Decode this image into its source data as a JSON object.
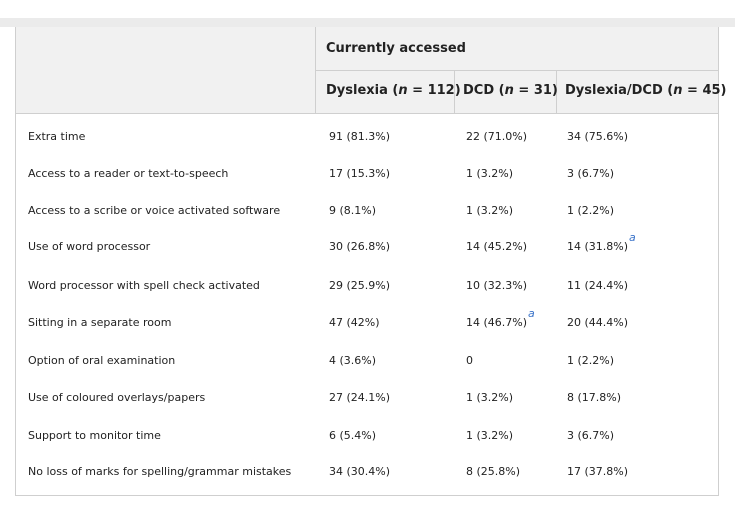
{
  "header": {
    "group_label": "Currently accessed",
    "columns": [
      {
        "name": "Dyslexia",
        "n_label": "n",
        "n_value": "112"
      },
      {
        "name": "DCD",
        "n_label": "n",
        "n_value": "31"
      },
      {
        "name": "Dyslexia/DCD",
        "n_label": "n",
        "n_value": "45"
      }
    ]
  },
  "footnote_marker": "a",
  "rows": [
    {
      "label": "Extra time",
      "dyslexia": "91 (81.3%)",
      "dcd": "22 (71.0%)",
      "both": "34 (75.6%)"
    },
    {
      "label": "Access to a reader or text-to-speech",
      "dyslexia": "17 (15.3%)",
      "dcd": "1 (3.2%)",
      "both": "3 (6.7%)"
    },
    {
      "label": "Access to a scribe or voice activated software",
      "dyslexia": "9 (8.1%)",
      "dcd": "1 (3.2%)",
      "both": "1 (2.2%)"
    },
    {
      "label": "Use of word processor",
      "dyslexia": "30 (26.8%)",
      "dcd": "14 (45.2%)",
      "both": "14 (31.8%)"
    },
    {
      "label": "Word processor with spell check activated",
      "dyslexia": "29 (25.9%)",
      "dcd": "10 (32.3%)",
      "both": "11 (24.4%)"
    },
    {
      "label": "Sitting in a separate room",
      "dyslexia": "47 (42%)",
      "dcd": "14 (46.7%)",
      "both": "20 (44.4%)"
    },
    {
      "label": "Option of oral examination",
      "dyslexia": "4 (3.6%)",
      "dcd": "0",
      "both": "1 (2.2%)"
    },
    {
      "label": "Use of coloured overlays/papers",
      "dyslexia": "27 (24.1%)",
      "dcd": "1 (3.2%)",
      "both": "8 (17.8%)"
    },
    {
      "label": "Support to monitor time",
      "dyslexia": "6 (5.4%)",
      "dcd": "1 (3.2%)",
      "both": "3 (6.7%)"
    },
    {
      "label": "No loss of marks for spelling/grammar mistakes",
      "dyslexia": "34 (30.4%)",
      "dcd": "8 (25.8%)",
      "both": "17 (37.8%)"
    }
  ]
}
